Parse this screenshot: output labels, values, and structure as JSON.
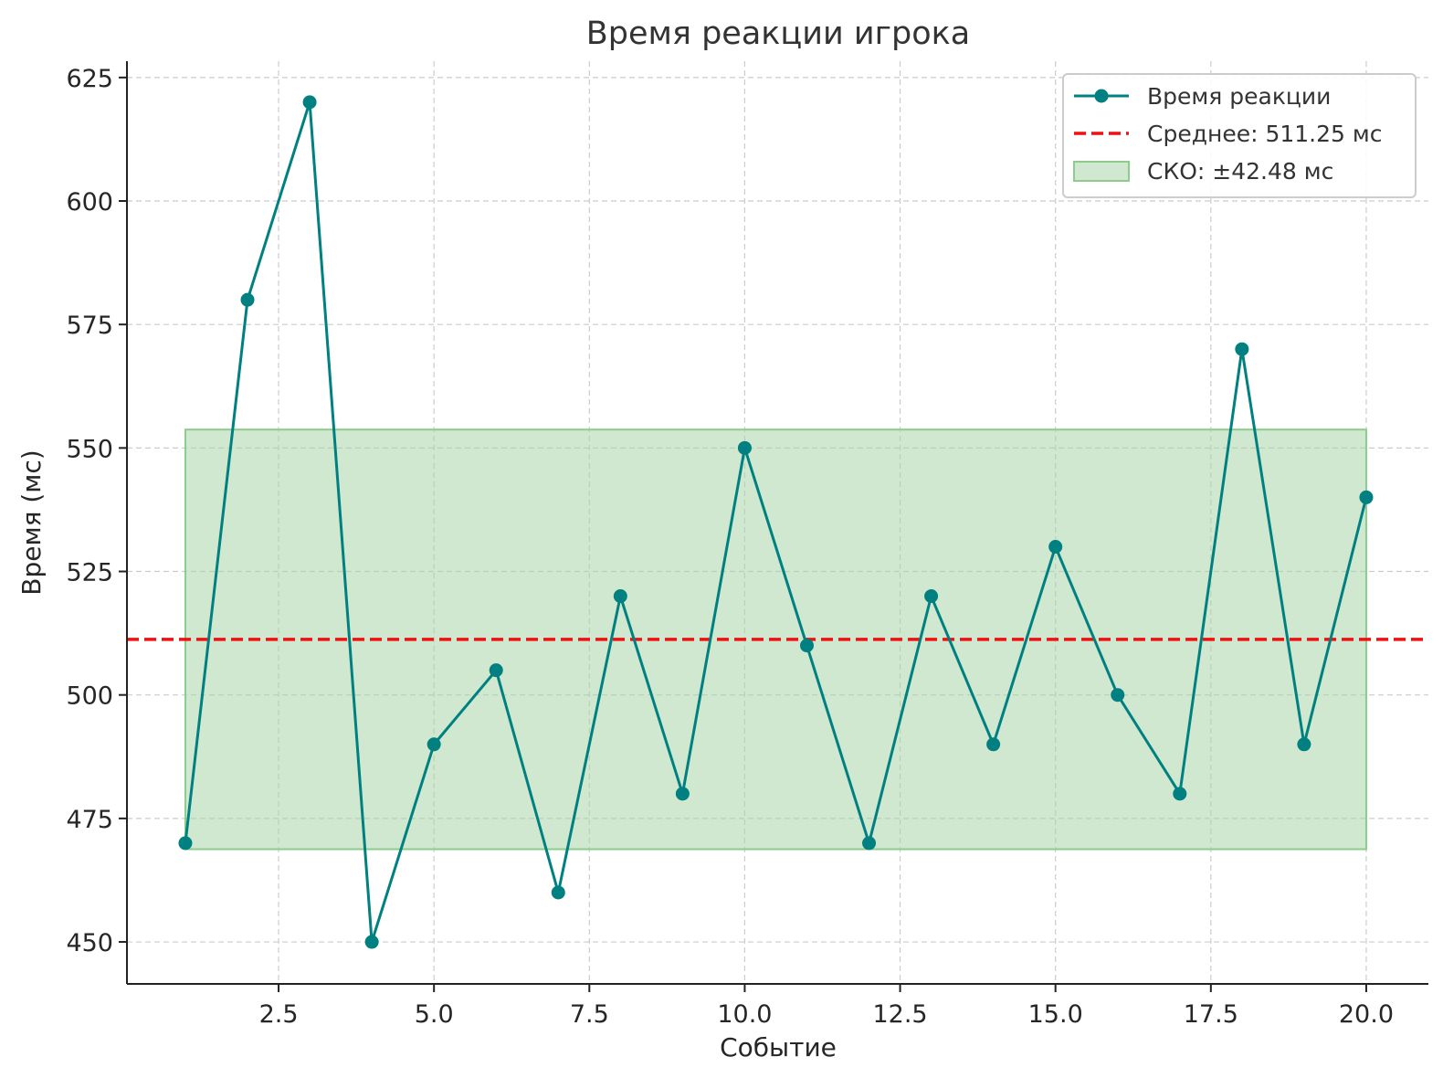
{
  "chart_data": {
    "type": "line",
    "title": "Время реакции игрока",
    "xlabel": "Событие",
    "ylabel": "Время (мс)",
    "xlim": [
      0.06,
      21.0
    ],
    "ylim": [
      441.5,
      628.3
    ],
    "x_ticks": [
      2.5,
      5.0,
      7.5,
      10.0,
      12.5,
      15.0,
      17.5,
      20.0
    ],
    "x_tick_labels": [
      "2.5",
      "5.0",
      "7.5",
      "10.0",
      "12.5",
      "15.0",
      "17.5",
      "20.0"
    ],
    "y_ticks": [
      450,
      475,
      500,
      525,
      550,
      575,
      600,
      625
    ],
    "y_tick_labels": [
      "450",
      "475",
      "500",
      "525",
      "550",
      "575",
      "600",
      "625"
    ],
    "grid": true,
    "legend_position": "top-right",
    "series": [
      {
        "name": "Время реакции",
        "color": "#008080",
        "x": [
          1,
          2,
          3,
          4,
          5,
          6,
          7,
          8,
          9,
          10,
          11,
          12,
          13,
          14,
          15,
          16,
          17,
          18,
          19,
          20
        ],
        "values": [
          470,
          580,
          620,
          450,
          490,
          505,
          460,
          520,
          480,
          550,
          510,
          470,
          520,
          490,
          530,
          500,
          480,
          570,
          490,
          540
        ]
      }
    ],
    "mean": {
      "label": "Среднее: 511.25 мс",
      "value": 511.25,
      "color": "#ee1111"
    },
    "std_band": {
      "label": "СКО: ±42.48 мс",
      "lower": 468.77,
      "upper": 553.73,
      "x_range": [
        1,
        20
      ],
      "fill": "#a8d5a8",
      "edge": "#8ccc8c"
    }
  }
}
